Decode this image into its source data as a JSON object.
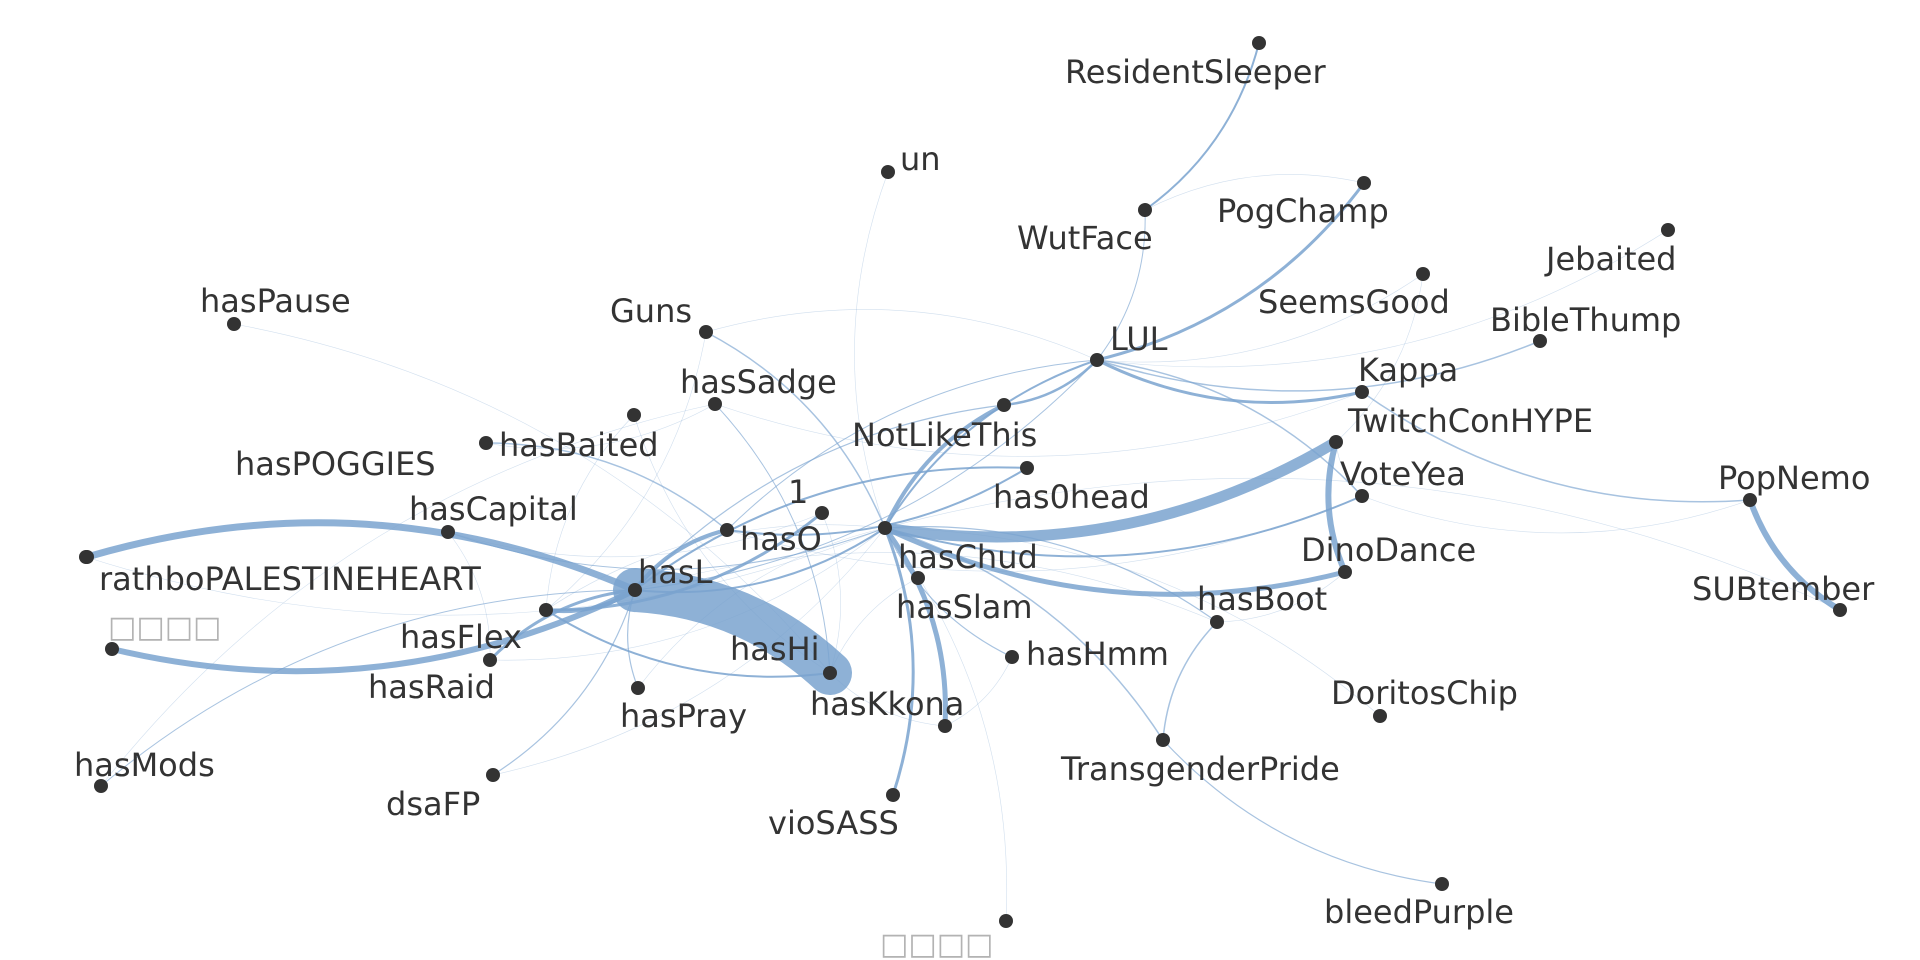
{
  "graph": {
    "edge_color": "#7aa3cf",
    "node_color": "#333333",
    "label_color": "#333333",
    "missing_label_color": "#b3b3b3",
    "nodes": [
      {
        "id": "ResidentSleeper",
        "label": "ResidentSleeper"
      },
      {
        "id": "un",
        "label": "un"
      },
      {
        "id": "WutFace",
        "label": "WutFace"
      },
      {
        "id": "PogChamp",
        "label": "PogChamp"
      },
      {
        "id": "Jebaited",
        "label": "Jebaited"
      },
      {
        "id": "hasPause",
        "label": "hasPause"
      },
      {
        "id": "SeemsGood",
        "label": "SeemsGood"
      },
      {
        "id": "Guns",
        "label": "Guns"
      },
      {
        "id": "BibleThump",
        "label": "BibleThump"
      },
      {
        "id": "LUL",
        "label": "LUL"
      },
      {
        "id": "hasSadge",
        "label": "hasSadge"
      },
      {
        "id": "Kappa",
        "label": "Kappa"
      },
      {
        "id": "TwitchConHYPE",
        "label": "TwitchConHYPE"
      },
      {
        "id": "hasBaited",
        "label": "hasBaited"
      },
      {
        "id": "NotLikeThis",
        "label": "NotLikeThis"
      },
      {
        "id": "hasPOGGIES",
        "label": "hasPOGGIES"
      },
      {
        "id": "VoteYea",
        "label": "VoteYea"
      },
      {
        "id": "PopNemo",
        "label": "PopNemo"
      },
      {
        "id": "has0head",
        "label": "has0head"
      },
      {
        "id": "hasCapital",
        "label": "hasCapital"
      },
      {
        "id": "1",
        "label": "1"
      },
      {
        "id": "hasO",
        "label": "hasO"
      },
      {
        "id": "hasChud",
        "label": "hasChud"
      },
      {
        "id": "DinoDance",
        "label": "DinoDance"
      },
      {
        "id": "rathboPALESTINEHEART",
        "label": "rathboPALESTINEHEART"
      },
      {
        "id": "hasL",
        "label": "hasL"
      },
      {
        "id": "SUBtember",
        "label": "SUBtember"
      },
      {
        "id": "missing1",
        "label": "□□□□"
      },
      {
        "id": "hasSlam",
        "label": "hasSlam"
      },
      {
        "id": "hasBoot",
        "label": "hasBoot"
      },
      {
        "id": "hasFlex",
        "label": "hasFlex"
      },
      {
        "id": "hasHi",
        "label": "hasHi"
      },
      {
        "id": "hasHmm",
        "label": "hasHmm"
      },
      {
        "id": "hasRaid",
        "label": "hasRaid"
      },
      {
        "id": "DoritosChip",
        "label": "DoritosChip"
      },
      {
        "id": "hasPray",
        "label": "hasPray"
      },
      {
        "id": "hasKkona",
        "label": "hasKkona"
      },
      {
        "id": "TransgenderPride",
        "label": "TransgenderPride"
      },
      {
        "id": "hasMods",
        "label": "hasMods"
      },
      {
        "id": "dsaFP",
        "label": "dsaFP"
      },
      {
        "id": "vioSASS",
        "label": "vioSASS"
      },
      {
        "id": "bleedPurple",
        "label": "bleedPurple"
      },
      {
        "id": "missing2",
        "label": "□□□□"
      },
      {
        "id": "rathbo_dot",
        "label": ""
      }
    ],
    "edges": [
      [
        "hasL",
        "hasHi",
        44
      ],
      [
        "hasChud",
        "TwitchConHYPE",
        11
      ],
      [
        "TwitchConHYPE",
        "DinoDance",
        6
      ],
      [
        "rathboPALESTINEHEART",
        "hasL",
        7
      ],
      [
        "hasL",
        "missing1",
        6
      ],
      [
        "PopNemo",
        "SUBtember",
        6
      ],
      [
        "hasChud",
        "hasKkona",
        5
      ],
      [
        "hasChud",
        "DinoDance",
        5
      ],
      [
        "hasChud",
        "NotLikeThis",
        4
      ],
      [
        "LUL",
        "PogChamp",
        3
      ],
      [
        "hasChud",
        "vioSASS",
        3
      ],
      [
        "hasFlex",
        "hasL",
        4
      ],
      [
        "hasL",
        "hasO",
        4
      ],
      [
        "hasFlex",
        "1",
        3
      ],
      [
        "hasRaid",
        "hasL",
        3
      ],
      [
        "LUL",
        "Kappa",
        3
      ],
      [
        "LUL",
        "NotLikeThis",
        2.5
      ],
      [
        "WutFace",
        "ResidentSleeper",
        2
      ],
      [
        "hasChud",
        "LUL",
        2
      ],
      [
        "hasO",
        "has0head",
        2
      ],
      [
        "hasL",
        "has0head",
        2
      ],
      [
        "hasChud",
        "VoteYea",
        2
      ],
      [
        "hasChud",
        "hasL",
        2
      ],
      [
        "hasFlex",
        "hasHi",
        2
      ],
      [
        "Guns",
        "hasChud",
        1.5
      ],
      [
        "LUL",
        "BibleThump",
        1.5
      ],
      [
        "LUL",
        "VoteYea",
        1.5
      ],
      [
        "Kappa",
        "PopNemo",
        1.5
      ],
      [
        "hasBaited",
        "hasO",
        1.5
      ],
      [
        "hasBoot",
        "TransgenderPride",
        1.5
      ],
      [
        "hasChud",
        "TransgenderPride",
        1.5
      ],
      [
        "TransgenderPride",
        "bleedPurple",
        1.2
      ],
      [
        "hasL",
        "dsaFP",
        1.2
      ],
      [
        "hasL",
        "hasMods",
        1
      ],
      [
        "hasChud",
        "hasHmm",
        1.2
      ],
      [
        "hasChud",
        "hasBoot",
        1.2
      ],
      [
        "hasL",
        "hasPray",
        1.2
      ],
      [
        "hasSadge",
        "hasHi",
        1
      ],
      [
        "hasL",
        "NotLikeThis",
        1.2
      ],
      [
        "hasCapital",
        "hasChud",
        1
      ],
      [
        "WutFace",
        "LUL",
        1
      ],
      [
        "hasL",
        "LUL",
        1
      ],
      [
        "hasO",
        "LUL",
        1
      ],
      [
        "VoteYea",
        "PopNemo",
        0.6
      ],
      [
        "un",
        "hasChud",
        0.5
      ],
      [
        "hasPause",
        "hasHi",
        0.5
      ],
      [
        "hasPOGGIES",
        "hasHi",
        0.5
      ],
      [
        "hasChud",
        "DoritosChip",
        0.6
      ],
      [
        "hasChud",
        "missing2",
        0.5
      ],
      [
        "hasChud",
        "SUBtember",
        0.4
      ],
      [
        "LUL",
        "Jebaited",
        0.4
      ],
      [
        "LUL",
        "SeemsGood",
        0.5
      ],
      [
        "WutFace",
        "PogChamp",
        0.5
      ],
      [
        "hasSadge",
        "Kappa",
        0.5
      ],
      [
        "Guns",
        "hasFlex",
        0.5
      ],
      [
        "hasBaited",
        "hasSadge",
        0.5
      ],
      [
        "hasCapital",
        "hasRaid",
        0.5
      ],
      [
        "hasPOGGIES",
        "hasFlex",
        0.5
      ],
      [
        "1",
        "hasHi",
        0.5
      ],
      [
        "hasSlam",
        "hasHi",
        0.6
      ],
      [
        "hasKkona",
        "hasHmm",
        0.5
      ],
      [
        "hasKkona",
        "hasHi",
        0.6
      ],
      [
        "hasPray",
        "hasChud",
        0.5
      ],
      [
        "hasRaid",
        "hasChud",
        0.6
      ],
      [
        "hasMods",
        "hasSadge",
        0.4
      ],
      [
        "dsaFP",
        "hasChud",
        0.4
      ],
      [
        "rathbo_dot",
        "hasChud",
        0.5
      ],
      [
        "DinoDance",
        "hasBoot",
        0.5
      ],
      [
        "TwitchConHYPE",
        "VoteYea",
        0.5
      ],
      [
        "SeemsGood",
        "TwitchConHYPE",
        0.4
      ],
      [
        "hasCapital",
        "1",
        0.4
      ],
      [
        "hasL",
        "hasBoot",
        0.4
      ],
      [
        "hasO",
        "VoteYea",
        0.4
      ],
      [
        "Guns",
        "LUL",
        0.4
      ],
      [
        "hasFlex",
        "hasChud",
        0.6
      ]
    ]
  }
}
